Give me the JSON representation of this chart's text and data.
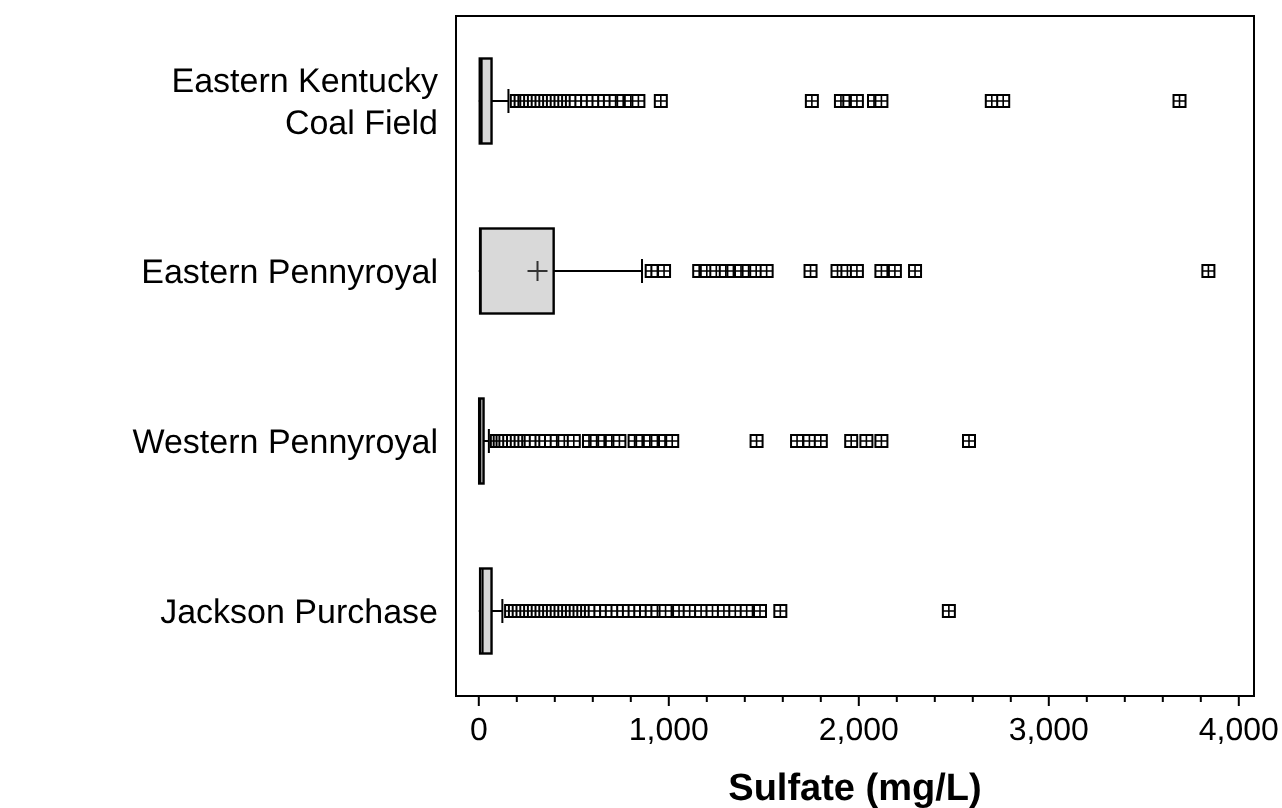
{
  "chart_data": {
    "type": "box",
    "orientation": "horizontal",
    "xlabel": "Sulfate (mg/L)",
    "categories": [
      "Eastern Kentucky\nCoal Field",
      "Eastern Pennyroyal",
      "Western Pennyroyal",
      "Jackson Purchase"
    ],
    "color": "#d9d9d9",
    "boxes": [
      {
        "low": 0,
        "q1": 5,
        "median": 15,
        "q3": 67,
        "high": 156,
        "outliers": [
          200,
          220,
          240,
          250,
          270,
          290,
          310,
          330,
          350,
          370,
          390,
          410,
          430,
          450,
          470,
          490,
          510,
          540,
          570,
          600,
          630,
          660,
          690,
          720,
          760,
          800,
          840,
          958,
          1753,
          1906,
          1950,
          1990,
          2080,
          2119,
          2700,
          2760,
          3688
        ]
      },
      {
        "low": 0,
        "q1": 7,
        "median": 10,
        "q3": 394,
        "high": 859,
        "mean": 309,
        "outliers": [
          910,
          940,
          975,
          1160,
          1200,
          1250,
          1300,
          1340,
          1380,
          1420,
          1460,
          1515,
          1746,
          1888,
          1940,
          1990,
          2119,
          2190,
          2296,
          3840
        ]
      },
      {
        "low": 0,
        "q1": 2,
        "median": 8,
        "q3": 25,
        "high": 53,
        "outliers": [
          95,
          110,
          125,
          140,
          160,
          180,
          200,
          220,
          240,
          260,
          273,
          300,
          330,
          350,
          380,
          410,
          450,
          500,
          580,
          620,
          660,
          700,
          740,
          820,
          860,
          900,
          940,
          980,
          1018,
          1462,
          1675,
          1740,
          1800,
          1960,
          2040,
          2119,
          2580
        ]
      },
      {
        "low": 0,
        "q1": 7,
        "median": 20,
        "q3": 67,
        "high": 124,
        "outliers": [
          170,
          190,
          210,
          230,
          250,
          270,
          290,
          310,
          330,
          350,
          370,
          390,
          410,
          430,
          450,
          470,
          490,
          510,
          530,
          550,
          570,
          590,
          610,
          640,
          670,
          700,
          730,
          760,
          790,
          820,
          850,
          880,
          910,
          940,
          983,
          1054,
          1110,
          1170,
          1230,
          1290,
          1350,
          1410,
          1480,
          1587,
          2474
        ]
      }
    ],
    "xlim": [
      -120,
      4080
    ],
    "xticks": [
      0,
      {
        "value": 200,
        "label": null
      },
      {
        "value": 400,
        "label": null
      },
      {
        "value": 600,
        "label": null
      },
      {
        "value": 800,
        "label": null
      },
      {
        "value": 1000,
        "label": "1,000"
      },
      {
        "value": 1200,
        "label": null
      },
      {
        "value": 1400,
        "label": null
      },
      {
        "value": 1600,
        "label": null
      },
      {
        "value": 1800,
        "label": null
      },
      {
        "value": 2000,
        "label": "2,000"
      },
      {
        "value": 2200,
        "label": null
      },
      {
        "value": 2400,
        "label": null
      },
      {
        "value": 2600,
        "label": null
      },
      {
        "value": 2800,
        "label": null
      },
      {
        "value": 3000,
        "label": "3,000"
      },
      {
        "value": 3200,
        "label": null
      },
      {
        "value": 3400,
        "label": null
      },
      {
        "value": 3600,
        "label": null
      },
      {
        "value": 3800,
        "label": null
      },
      {
        "value": 4000,
        "label": "4,000"
      }
    ]
  }
}
